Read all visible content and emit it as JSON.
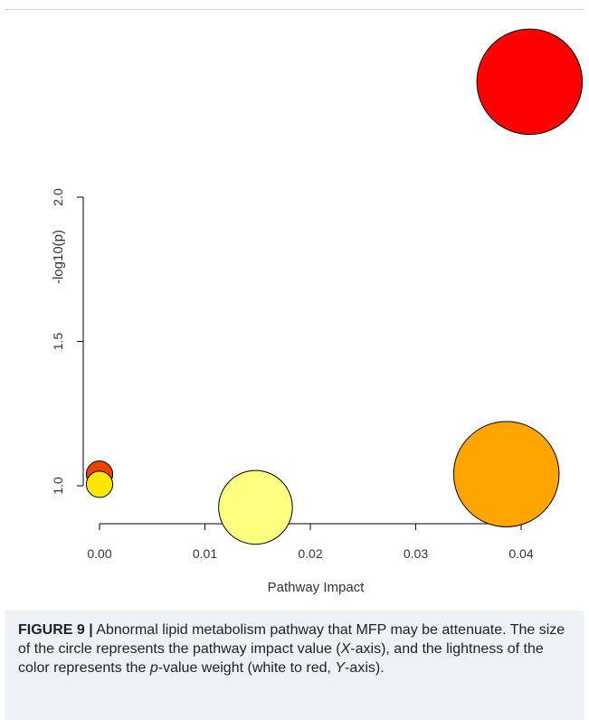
{
  "chart_data": {
    "type": "scatter",
    "xlabel": "Pathway Impact",
    "ylabel": "-log10(p)",
    "xlim": [
      -0.002,
      0.0445
    ],
    "ylim": [
      0.87,
      2.55
    ],
    "xticks": [
      0.0,
      0.01,
      0.02,
      0.03,
      0.04
    ],
    "xtick_labels": [
      "0.00",
      "0.01",
      "0.02",
      "0.03",
      "0.04"
    ],
    "yticks": [
      1.0,
      1.5,
      2.0
    ],
    "ytick_labels": [
      "1.0",
      "1.5",
      "2.0"
    ],
    "points": [
      {
        "x": 0.0,
        "y": 1.04,
        "size": 0.0025,
        "color": "#ee4000"
      },
      {
        "x": 0.0,
        "y": 1.005,
        "size": 0.0025,
        "color": "#ffe600"
      },
      {
        "x": 0.0148,
        "y": 0.925,
        "size": 0.007,
        "color": "#ffff80"
      },
      {
        "x": 0.0386,
        "y": 1.04,
        "size": 0.01,
        "color": "#ffa500"
      },
      {
        "x": 0.0408,
        "y": 2.4,
        "size": 0.01,
        "color": "#ff0000"
      }
    ]
  },
  "caption": {
    "label": "FIGURE 9 |",
    "text_1": " Abnormal lipid metabolism pathway that MFP may be attenuate. The size of the circle represents the pathway impact value (",
    "x_axis": "X",
    "text_2": "-axis), and the lightness of the color represents the ",
    "p": "p",
    "text_3": "-value weight (white to red, ",
    "y_axis": "Y",
    "text_4": "-axis)."
  }
}
